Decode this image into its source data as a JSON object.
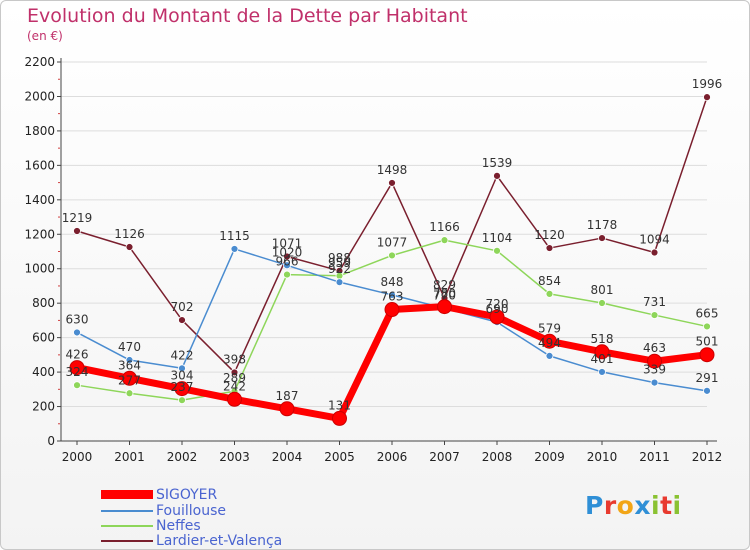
{
  "header": {
    "title": "Evolution du Montant de la Dette par Habitant",
    "subtitle": "(en €)"
  },
  "colors": {
    "title": "#c0306a",
    "legend_text": "#4a64d0",
    "axis": "#444444",
    "grid": "#dddddd",
    "tick_text": "#222222",
    "data_label": "#333333"
  },
  "logo": {
    "text": "Proxiti",
    "colors": [
      "#2f8fd6",
      "#e83a2f",
      "#f2a516",
      "#2f8fd6",
      "#8ac232",
      "#e83a2f",
      "#8ac232"
    ]
  },
  "chart_data": {
    "type": "line",
    "title": "Evolution du Montant de la Dette par Habitant",
    "subtitle": "(en €)",
    "x": [
      "2000",
      "2001",
      "2002",
      "2003",
      "2004",
      "2005",
      "2006",
      "2007",
      "2008",
      "2009",
      "2010",
      "2011",
      "2012"
    ],
    "ylim": [
      0,
      2200
    ],
    "yticks": [
      0,
      200,
      400,
      600,
      800,
      1000,
      1200,
      1400,
      1600,
      1800,
      2000,
      2200
    ],
    "grid": true,
    "legend_position": "bottom-left",
    "series": [
      {
        "name": "Lardier-et-Valença",
        "color": "#7a1f2e",
        "style": "thin",
        "values": [
          1219,
          1126,
          702,
          398,
          1071,
          988,
          1498,
          829,
          1539,
          1120,
          1178,
          1094,
          1996
        ]
      },
      {
        "name": "Neffes",
        "color": "#8ed65a",
        "style": "thin",
        "values": [
          324,
          277,
          237,
          289,
          966,
          959,
          1077,
          1166,
          1104,
          854,
          801,
          731,
          665
        ]
      },
      {
        "name": "Fouillouse",
        "color": "#4a8cd0",
        "style": "thin",
        "values": [
          630,
          470,
          422,
          1115,
          1020,
          922,
          848,
          770,
          690,
          494,
          401,
          339,
          291
        ]
      },
      {
        "name": "SIGOYER",
        "color": "#ff0000",
        "style": "thick",
        "values": [
          426,
          364,
          304,
          242,
          187,
          131,
          763,
          780,
          720,
          579,
          518,
          463,
          501
        ]
      }
    ]
  }
}
